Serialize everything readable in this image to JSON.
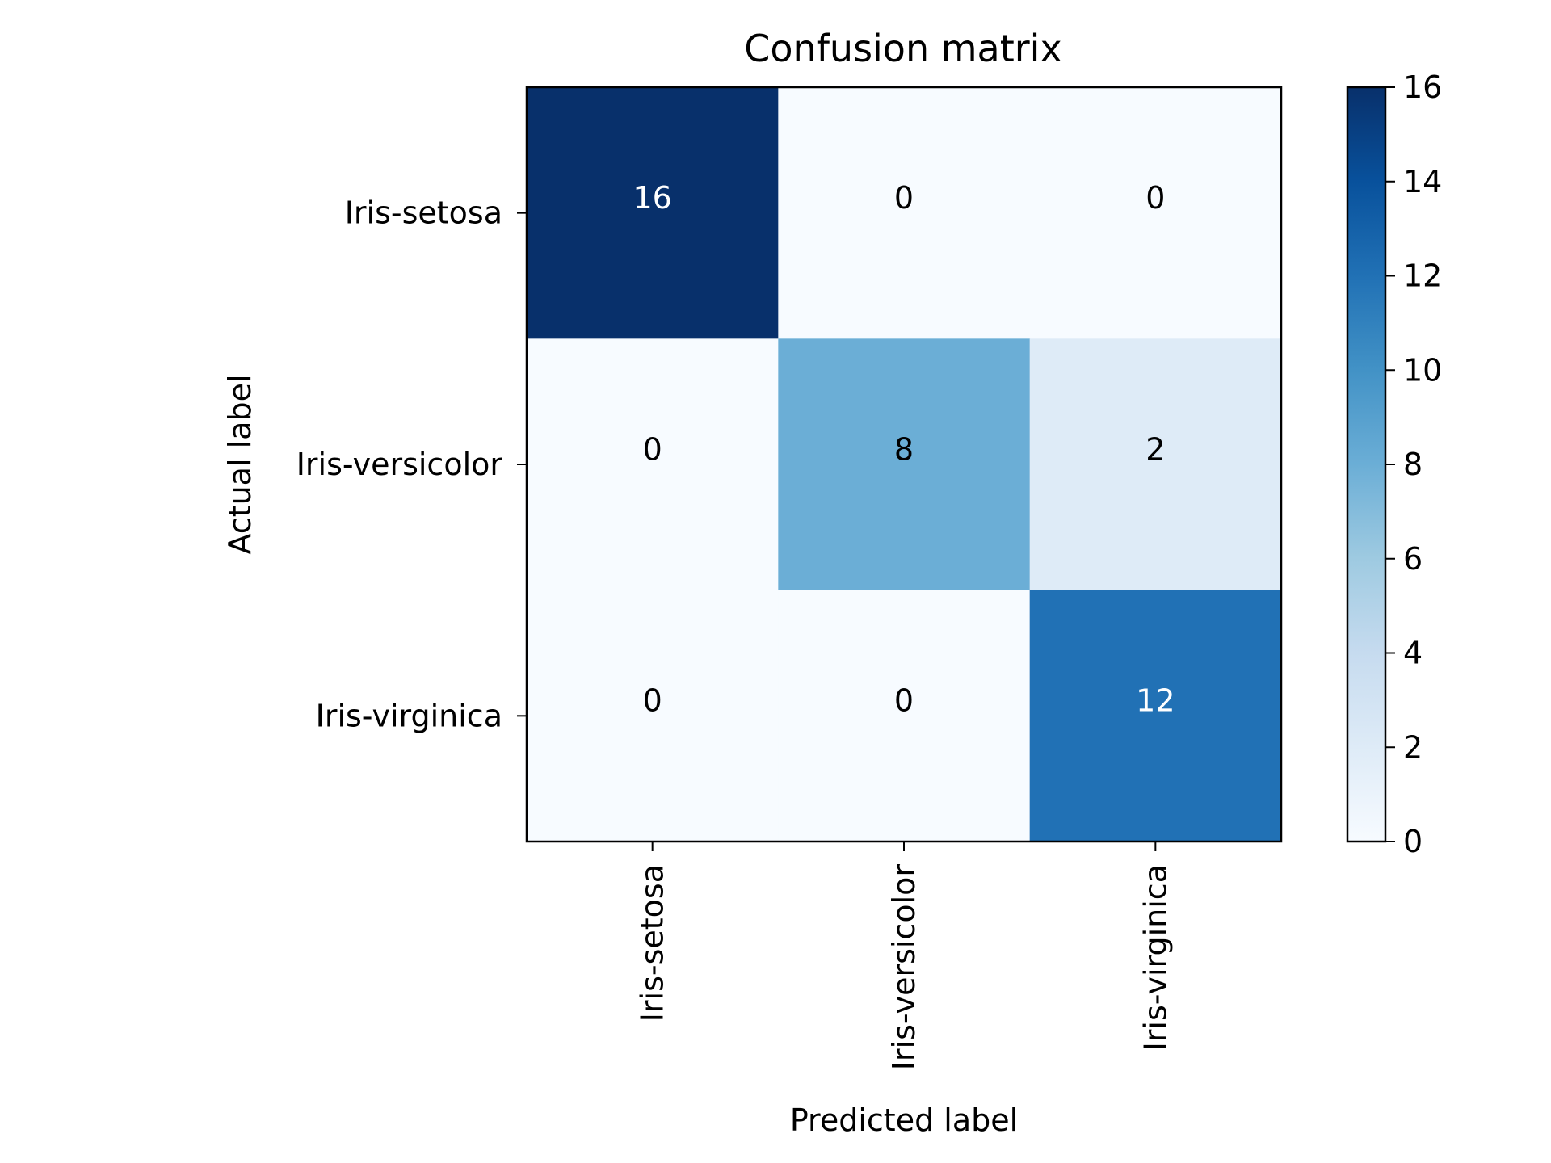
{
  "chart_data": {
    "type": "heatmap",
    "title": "Confusion matrix",
    "xlabel": "Predicted label",
    "ylabel": "Actual label",
    "x_categories": [
      "Iris-setosa",
      "Iris-versicolor",
      "Iris-virginica"
    ],
    "y_categories": [
      "Iris-setosa",
      "Iris-versicolor",
      "Iris-virginica"
    ],
    "values": [
      [
        16,
        0,
        0
      ],
      [
        0,
        8,
        2
      ],
      [
        0,
        0,
        12
      ]
    ],
    "colormap": "Blues",
    "colorbar": {
      "range": [
        0,
        16
      ],
      "ticks": [
        0,
        2,
        4,
        6,
        8,
        10,
        12,
        14,
        16
      ]
    },
    "grid": false
  }
}
